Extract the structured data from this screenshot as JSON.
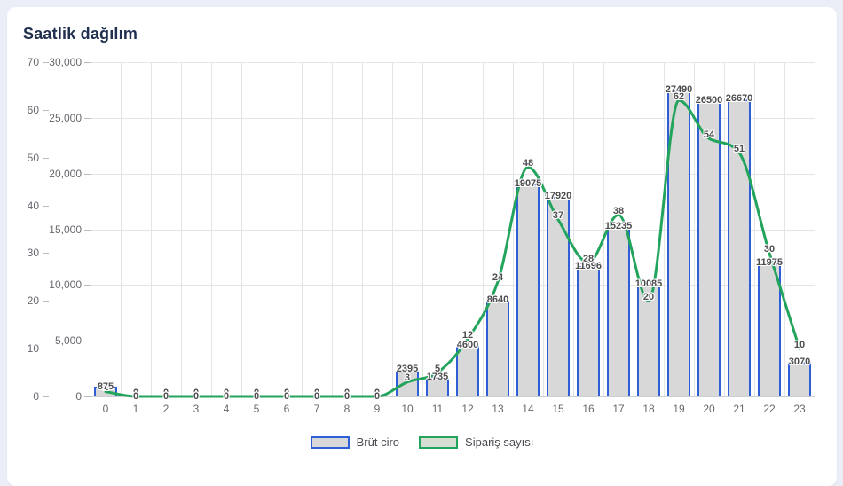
{
  "header": {
    "title": "Saatlik dağılım"
  },
  "colors": {
    "page_background": "#ebeef6",
    "card_background": "#ffffff",
    "title_text": "#20304e",
    "bar_fill": "#d8d8d8",
    "bar_border": "#2e5fd6",
    "line_color": "#23a45c",
    "axis_text": "#66686e",
    "data_label_text": "#4d4d50",
    "gridline": "#e4e4e8"
  },
  "chart_data": {
    "type": "bar+line combo",
    "title": "Saatlik dağılım",
    "categories": [
      "0",
      "1",
      "2",
      "3",
      "4",
      "5",
      "6",
      "7",
      "8",
      "9",
      "10",
      "11",
      "12",
      "13",
      "14",
      "15",
      "16",
      "17",
      "18",
      "19",
      "20",
      "21",
      "22",
      "23"
    ],
    "series": [
      {
        "name": "Brüt ciro",
        "type": "bar",
        "y_axis": "revenue",
        "fill": "#d8d8d8",
        "border": "#2e5fd6",
        "values": [
          875,
          0,
          0,
          0,
          0,
          0,
          0,
          0,
          0,
          0,
          2395,
          1735,
          4600,
          8640,
          19075,
          17920,
          11696,
          15235,
          10085,
          27490,
          26500,
          26670,
          11975,
          3070
        ]
      },
      {
        "name": "Sipariş sayısı",
        "type": "line",
        "y_axis": "orders",
        "color": "#23a45c",
        "values": [
          1,
          0,
          0,
          0,
          0,
          0,
          0,
          0,
          0,
          0,
          3,
          5,
          12,
          24,
          48,
          37,
          28,
          38,
          20,
          62,
          54,
          51,
          30,
          10
        ]
      }
    ],
    "y_axes": [
      {
        "id": "orders",
        "side": "left-outer",
        "min": 0,
        "max": 70,
        "step": 10,
        "tick_labels": [
          "0",
          "10",
          "20",
          "30",
          "40",
          "50",
          "60",
          "70"
        ]
      },
      {
        "id": "revenue",
        "side": "left-inner",
        "min": 0,
        "max": 30000,
        "step": 5000,
        "tick_labels": [
          "0",
          "5,000",
          "10,000",
          "15,000",
          "20,000",
          "25,000",
          "30,000"
        ]
      }
    ],
    "x_axis": {
      "tick_labels": [
        "0",
        "1",
        "2",
        "3",
        "4",
        "5",
        "6",
        "7",
        "8",
        "9",
        "10",
        "11",
        "12",
        "13",
        "14",
        "15",
        "16",
        "17",
        "18",
        "19",
        "20",
        "21",
        "22",
        "23"
      ]
    },
    "grid": true,
    "data_labels_visible": true,
    "legend": {
      "position": "bottom",
      "items": [
        {
          "label": "Brüt ciro",
          "swatch_border": "#2e5fd6",
          "swatch_fill": "#d8d8d8"
        },
        {
          "label": "Sipariş sayısı",
          "swatch_border": "#23a45c",
          "swatch_fill": "#d6ded4"
        }
      ]
    }
  }
}
